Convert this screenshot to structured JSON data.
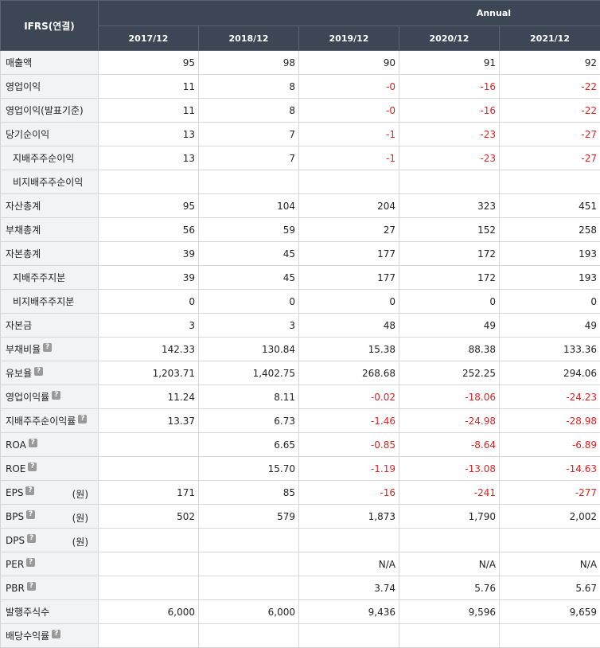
{
  "header": {
    "corner_label": "IFRS(연결)",
    "group_label": "Annual",
    "periods": [
      "2017/12",
      "2018/12",
      "2019/12",
      "2020/12",
      "2021/12"
    ]
  },
  "rows": [
    {
      "label": "매출액",
      "sub": false,
      "help": false,
      "unit": "",
      "values": [
        "95",
        "98",
        "90",
        "91",
        "92"
      ]
    },
    {
      "label": "영업이익",
      "sub": false,
      "help": false,
      "unit": "",
      "values": [
        "11",
        "8",
        "-0",
        "-16",
        "-22"
      ]
    },
    {
      "label": "영업이익(발표기준)",
      "sub": false,
      "help": false,
      "unit": "",
      "values": [
        "11",
        "8",
        "-0",
        "-16",
        "-22"
      ]
    },
    {
      "label": "당기순이익",
      "sub": false,
      "help": false,
      "unit": "",
      "values": [
        "13",
        "7",
        "-1",
        "-23",
        "-27"
      ]
    },
    {
      "label": "지배주주순이익",
      "sub": true,
      "help": false,
      "unit": "",
      "values": [
        "13",
        "7",
        "-1",
        "-23",
        "-27"
      ]
    },
    {
      "label": "비지배주주순이익",
      "sub": true,
      "help": false,
      "unit": "",
      "values": [
        "",
        "",
        "",
        "",
        ""
      ]
    },
    {
      "label": "자산총계",
      "sub": false,
      "help": false,
      "unit": "",
      "values": [
        "95",
        "104",
        "204",
        "323",
        "451"
      ]
    },
    {
      "label": "부채총계",
      "sub": false,
      "help": false,
      "unit": "",
      "values": [
        "56",
        "59",
        "27",
        "152",
        "258"
      ]
    },
    {
      "label": "자본총계",
      "sub": false,
      "help": false,
      "unit": "",
      "values": [
        "39",
        "45",
        "177",
        "172",
        "193"
      ]
    },
    {
      "label": "지배주주지분",
      "sub": true,
      "help": false,
      "unit": "",
      "values": [
        "39",
        "45",
        "177",
        "172",
        "193"
      ]
    },
    {
      "label": "비지배주주지분",
      "sub": true,
      "help": false,
      "unit": "",
      "values": [
        "0",
        "0",
        "0",
        "0",
        "0"
      ]
    },
    {
      "label": "자본금",
      "sub": false,
      "help": false,
      "unit": "",
      "values": [
        "3",
        "3",
        "48",
        "49",
        "49"
      ]
    },
    {
      "label": "부채비율",
      "sub": false,
      "help": true,
      "unit": "",
      "values": [
        "142.33",
        "130.84",
        "15.38",
        "88.38",
        "133.36"
      ]
    },
    {
      "label": "유보율",
      "sub": false,
      "help": true,
      "unit": "",
      "values": [
        "1,203.71",
        "1,402.75",
        "268.68",
        "252.25",
        "294.06"
      ]
    },
    {
      "label": "영업이익률",
      "sub": false,
      "help": true,
      "unit": "",
      "values": [
        "11.24",
        "8.11",
        "-0.02",
        "-18.06",
        "-24.23"
      ]
    },
    {
      "label": "지배주주순이익률",
      "sub": false,
      "help": true,
      "unit": "",
      "values": [
        "13.37",
        "6.73",
        "-1.46",
        "-24.98",
        "-28.98"
      ]
    },
    {
      "label": "ROA",
      "sub": false,
      "help": true,
      "unit": "",
      "values": [
        "",
        "6.65",
        "-0.85",
        "-8.64",
        "-6.89"
      ]
    },
    {
      "label": "ROE",
      "sub": false,
      "help": true,
      "unit": "",
      "values": [
        "",
        "15.70",
        "-1.19",
        "-13.08",
        "-14.63"
      ]
    },
    {
      "label": "EPS",
      "sub": false,
      "help": true,
      "unit": "(원)",
      "values": [
        "171",
        "85",
        "-16",
        "-241",
        "-277"
      ]
    },
    {
      "label": "BPS",
      "sub": false,
      "help": true,
      "unit": "(원)",
      "values": [
        "502",
        "579",
        "1,873",
        "1,790",
        "2,002"
      ]
    },
    {
      "label": "DPS",
      "sub": false,
      "help": true,
      "unit": "(원)",
      "values": [
        "",
        "",
        "",
        "",
        ""
      ]
    },
    {
      "label": "PER",
      "sub": false,
      "help": true,
      "unit": "",
      "values": [
        "",
        "",
        "N/A",
        "N/A",
        "N/A"
      ]
    },
    {
      "label": "PBR",
      "sub": false,
      "help": true,
      "unit": "",
      "values": [
        "",
        "",
        "3.74",
        "5.76",
        "5.67"
      ]
    },
    {
      "label": "발행주식수",
      "sub": false,
      "help": false,
      "unit": "",
      "values": [
        "6,000",
        "6,000",
        "9,436",
        "9,596",
        "9,659"
      ]
    },
    {
      "label": "배당수익률",
      "sub": false,
      "help": true,
      "unit": "",
      "values": [
        "",
        "",
        "",
        "",
        ""
      ]
    }
  ],
  "help_icon": {
    "name": "question-icon",
    "glyph": "?"
  },
  "colors": {
    "header_bg": "#3c4655",
    "label_bg": "#f2f3f5",
    "negative": "#e02020"
  }
}
